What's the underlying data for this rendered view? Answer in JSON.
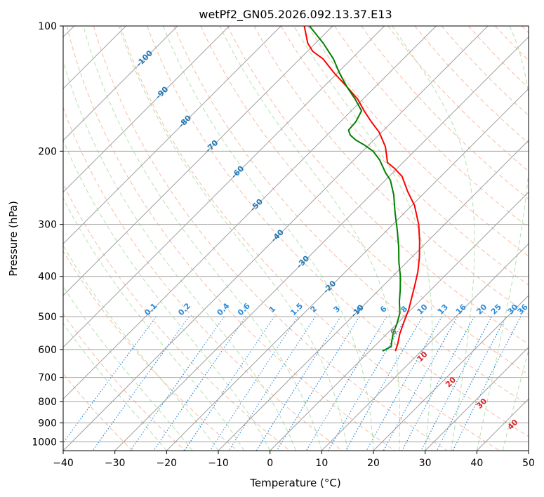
{
  "chart_data": {
    "type": "line",
    "title": "wetPf2_GN05.2026.092.13.37.E13",
    "xlabel": "Temperature (°C)",
    "ylabel": "Pressure (hPa)",
    "xlim": [
      -40,
      50
    ],
    "ylim": [
      1050,
      100
    ],
    "x_ticks": [
      -40,
      -30,
      -20,
      -10,
      0,
      10,
      20,
      30,
      40,
      50
    ],
    "y_ticks": [
      100,
      200,
      300,
      400,
      500,
      600,
      700,
      800,
      900,
      1000
    ],
    "skew": 45,
    "series": [
      {
        "name": "Temperature",
        "color": "#ff0000",
        "points": [
          {
            "p": 605,
            "t": 5.0
          },
          {
            "p": 580,
            "t": 4.0
          },
          {
            "p": 550,
            "t": 2.5
          },
          {
            "p": 510,
            "t": 0.8
          },
          {
            "p": 480,
            "t": -0.5
          },
          {
            "p": 450,
            "t": -2.2
          },
          {
            "p": 420,
            "t": -4.0
          },
          {
            "p": 390,
            "t": -6.0
          },
          {
            "p": 360,
            "t": -8.5
          },
          {
            "p": 330,
            "t": -11.5
          },
          {
            "p": 300,
            "t": -15.0
          },
          {
            "p": 270,
            "t": -19.5
          },
          {
            "p": 250,
            "t": -23.5
          },
          {
            "p": 230,
            "t": -27.5
          },
          {
            "p": 220,
            "t": -30.5
          },
          {
            "p": 213,
            "t": -33.0
          },
          {
            "p": 205,
            "t": -34.5
          },
          {
            "p": 195,
            "t": -36.5
          },
          {
            "p": 180,
            "t": -40.5
          },
          {
            "p": 170,
            "t": -44.0
          },
          {
            "p": 160,
            "t": -47.5
          },
          {
            "p": 150,
            "t": -51.0
          },
          {
            "p": 140,
            "t": -55.5
          },
          {
            "p": 130,
            "t": -60.5
          },
          {
            "p": 120,
            "t": -65.5
          },
          {
            "p": 115,
            "t": -69.0
          },
          {
            "p": 110,
            "t": -71.5
          },
          {
            "p": 100,
            "t": -75.5
          }
        ]
      },
      {
        "name": "Dewpoint",
        "color": "#008000",
        "points": [
          {
            "p": 605,
            "t": 2.5
          },
          {
            "p": 590,
            "t": 3.3
          },
          {
            "p": 575,
            "t": 2.5
          },
          {
            "p": 550,
            "t": 1.2
          },
          {
            "p": 520,
            "t": 0.0
          },
          {
            "p": 490,
            "t": -1.5
          },
          {
            "p": 460,
            "t": -3.8
          },
          {
            "p": 430,
            "t": -6.0
          },
          {
            "p": 400,
            "t": -8.5
          },
          {
            "p": 370,
            "t": -11.5
          },
          {
            "p": 340,
            "t": -14.5
          },
          {
            "p": 310,
            "t": -18.0
          },
          {
            "p": 280,
            "t": -22.0
          },
          {
            "p": 255,
            "t": -25.5
          },
          {
            "p": 235,
            "t": -29.0
          },
          {
            "p": 225,
            "t": -31.5
          },
          {
            "p": 210,
            "t": -35.0
          },
          {
            "p": 200,
            "t": -38.0
          },
          {
            "p": 193,
            "t": -41.0
          },
          {
            "p": 188,
            "t": -43.5
          },
          {
            "p": 183,
            "t": -45.5
          },
          {
            "p": 178,
            "t": -46.8
          },
          {
            "p": 170,
            "t": -47.0
          },
          {
            "p": 160,
            "t": -48.0
          },
          {
            "p": 150,
            "t": -51.5
          },
          {
            "p": 140,
            "t": -55.5
          },
          {
            "p": 130,
            "t": -59.5
          },
          {
            "p": 120,
            "t": -63.5
          },
          {
            "p": 110,
            "t": -68.5
          },
          {
            "p": 100,
            "t": -74.5
          }
        ]
      }
    ],
    "isotherm_labels": [
      {
        "text": "-100",
        "t": -100,
        "p": 120
      },
      {
        "text": "-90",
        "t": -90,
        "p": 145
      },
      {
        "text": "-80",
        "t": -80,
        "p": 170
      },
      {
        "text": "-70",
        "t": -70,
        "p": 195
      },
      {
        "text": "-60",
        "t": -60,
        "p": 225
      },
      {
        "text": "-50",
        "t": -50,
        "p": 270
      },
      {
        "text": "-40",
        "t": -40,
        "p": 320
      },
      {
        "text": "-30",
        "t": -30,
        "p": 370
      },
      {
        "text": "-20",
        "t": -20,
        "p": 425
      },
      {
        "text": "-10",
        "t": -10,
        "p": 485
      }
    ],
    "mixing_ratio_labels": [
      "0.1",
      "0.2",
      "0.4",
      "0.6",
      "1",
      "1.5",
      "2",
      "3",
      "4",
      "6",
      "8",
      "10",
      "13",
      "16",
      "20",
      "25",
      "30",
      "36"
    ],
    "mixing_ratio_label_x": [
      -23,
      -16.5,
      -9,
      -5,
      0.5,
      5.2,
      8.5,
      13,
      17.3,
      22,
      26,
      29.5,
      33.5,
      37,
      41,
      43.8,
      47,
      50
    ],
    "moist_adiabat_labels": [
      {
        "text": "0",
        "t": 24.0,
        "p": 545,
        "color": "#808080"
      },
      {
        "text": "10",
        "t": 29.5,
        "p": 625,
        "color": "#d62728"
      },
      {
        "text": "20",
        "t": 35.0,
        "p": 720,
        "color": "#d62728"
      },
      {
        "text": "30",
        "t": 41.0,
        "p": 810,
        "color": "#d62728"
      },
      {
        "text": "40",
        "t": 47.0,
        "p": 910,
        "color": "#d62728"
      }
    ],
    "colors": {
      "isotherm": "#a0a0a0",
      "isobar": "#a0a0a0",
      "dry_adiabat": "#f4a582",
      "moist_adiabat": "#a1d99b",
      "mixing_ratio": "#2b8cdb",
      "isotherm_label": "#1f77b4",
      "mixing_label": "#2b8cdb"
    }
  }
}
